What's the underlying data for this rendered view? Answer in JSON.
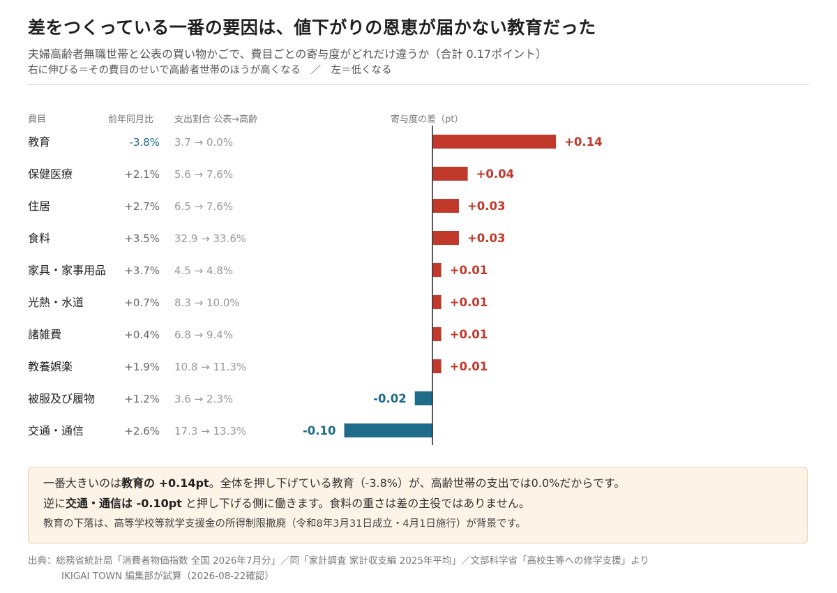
{
  "header": {
    "title": "差をつくっている一番の要因は、値下がりの恩恵が届かない教育だった",
    "subtitle": "夫婦高齢者無職世帯と公表の買い物かごで、費目ごとの寄与度がどれだけ違うか（合計 0.17ポイント）",
    "note": "右に伸びる＝その費目のせいで高齢者世帯のほうが高くなる　／　左＝低くなる"
  },
  "columns": {
    "category": "費目",
    "yoy": "前年同月比",
    "share": "支出割合 公表→高齢",
    "diff": "寄与度の差（pt）"
  },
  "colors": {
    "positive": "#c0392b",
    "negative": "#1e6b8a",
    "axis": "#222222",
    "yoy_negative": "#1e6b8a"
  },
  "chart_data": {
    "type": "bar",
    "orientation": "horizontal",
    "categories": [
      "教育",
      "保健医療",
      "住居",
      "食料",
      "家具・家事用品",
      "光熱・水道",
      "諸雑費",
      "教養娯楽",
      "被服及び履物",
      "交通・通信"
    ],
    "values": [
      0.14,
      0.04,
      0.03,
      0.03,
      0.01,
      0.01,
      0.01,
      0.01,
      -0.02,
      -0.1
    ],
    "value_labels": [
      "+0.14",
      "+0.04",
      "+0.03",
      "+0.03",
      "+0.01",
      "+0.01",
      "+0.01",
      "+0.01",
      "-0.02",
      "-0.10"
    ],
    "yoy": [
      "-3.8%",
      "+2.1%",
      "+2.7%",
      "+3.5%",
      "+3.7%",
      "+0.7%",
      "+0.4%",
      "+1.9%",
      "+1.2%",
      "+2.6%"
    ],
    "share": [
      "3.7 → 0.0%",
      "5.6 → 7.6%",
      "6.5 → 7.6%",
      "32.9 → 33.6%",
      "4.5 → 4.8%",
      "8.3 → 10.0%",
      "6.8 → 9.4%",
      "10.8 → 11.3%",
      "3.6 → 2.3%",
      "17.3 → 13.3%"
    ],
    "xlabel": "寄与度の差（pt）",
    "xlim": [
      -0.1,
      0.14
    ],
    "grid": false
  },
  "callout": {
    "l1_pre": "一番大きいのは",
    "l1_b1": "教育の +0.14pt",
    "l1_post": "。全体を押し下げている教育（-3.8%）が、高齢世帯の支出では0.0%だからです。",
    "l2_pre": "逆に",
    "l2_b1": "交通・通信は -0.10pt",
    "l2_post": " と押し下げる側に働きます。食料の重さは差の主役ではありません。",
    "l3": "教育の下落は、高等学校等就学支援金の所得制限撤廃（令和8年3月31日成立・4月1日施行）が背景です。"
  },
  "source": {
    "line1": "出典：総務省統計局「消費者物価指数 全国 2026年7月分」／同「家計調査 家計収支編 2025年平均」／文部科学省「高校生等への修学支援」より",
    "line2": "IKIGAI TOWN 編集部が試算（2026-08-22確認）"
  }
}
